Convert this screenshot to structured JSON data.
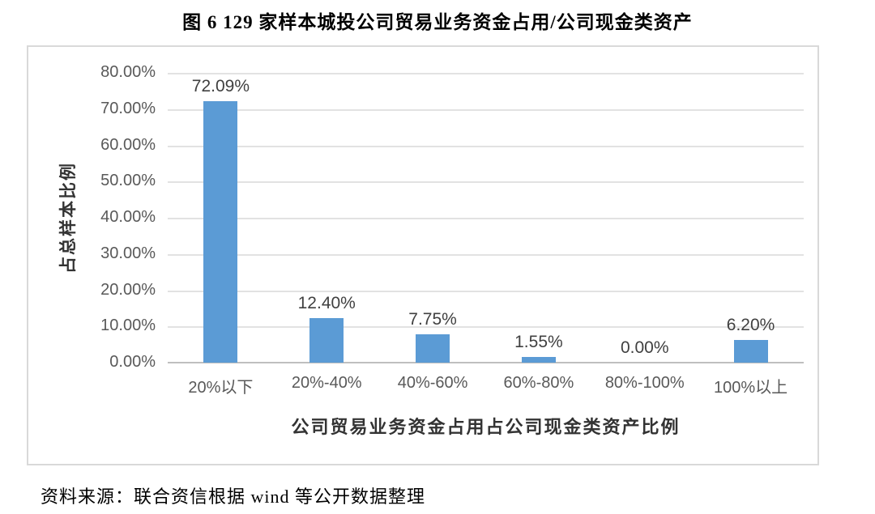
{
  "figure": {
    "title": "图 6  129 家样本城投公司贸易业务资金占用/公司现金类资产"
  },
  "chart_data": {
    "type": "bar",
    "title": "图 6  129 家样本城投公司贸易业务资金占用/公司现金类资产",
    "categories": [
      "20%以下",
      "20%-40%",
      "40%-60%",
      "60%-80%",
      "80%-100%",
      "100%以上"
    ],
    "values": [
      72.09,
      12.4,
      7.75,
      1.55,
      0.0,
      6.2
    ],
    "value_labels": [
      "72.09%",
      "12.40%",
      "7.75%",
      "1.55%",
      "0.00%",
      "6.20%"
    ],
    "xlabel": "公司贸易业务资金占用占公司现金类资产比例",
    "ylabel": "占总样本比例",
    "ylim": [
      0,
      80
    ],
    "ytick_step": 10,
    "ytick_labels": [
      "0.00%",
      "10.00%",
      "20.00%",
      "30.00%",
      "40.00%",
      "50.00%",
      "60.00%",
      "70.00%",
      "80.00%"
    ],
    "grid": true,
    "legend": "none",
    "bar_color": "#5b9bd5",
    "gridline_color": "#e2e2e2",
    "axis_line_color": "#bfbfbf"
  },
  "source": {
    "text": "资料来源：联合资信根据 wind 等公开数据整理"
  }
}
